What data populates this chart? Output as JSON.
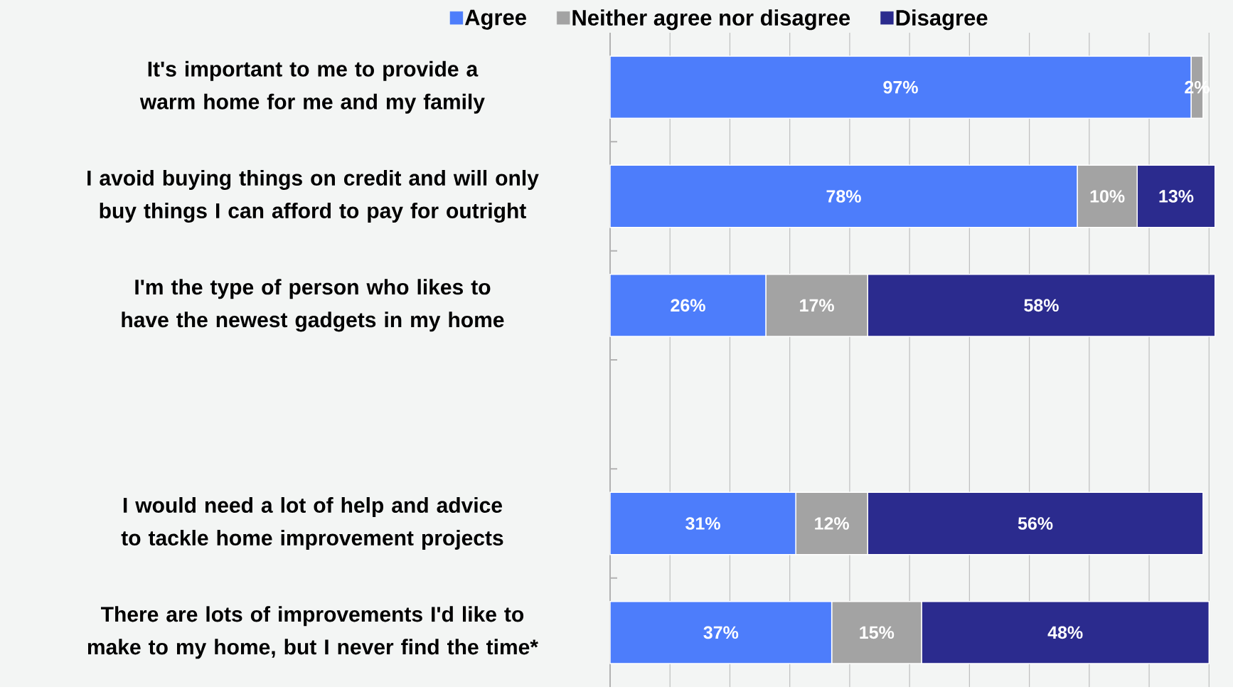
{
  "chart_data": {
    "type": "bar",
    "orientation": "horizontal",
    "stacked": true,
    "categories": [
      "It's important to me to provide a warm home for me and my family",
      "I avoid buying things on credit and will only buy things I can afford to pay for outright",
      "I'm the type of person who likes to have the newest gadgets in my home",
      null,
      "I would need a lot of help and advice to tackle home improvement projects",
      "There are lots of improvements I'd like to make to my home, but I never find the time*"
    ],
    "series": [
      {
        "name": "Agree",
        "color": "#4d7dfb",
        "values": [
          97,
          78,
          26,
          null,
          31,
          37
        ],
        "value_labels": [
          "97%",
          "78%",
          "26%",
          null,
          "31%",
          "37%"
        ]
      },
      {
        "name": "Neither agree nor disagree",
        "color": "#a3a3a3",
        "values": [
          2,
          10,
          17,
          null,
          12,
          15
        ],
        "value_labels": [
          "2%",
          "10%",
          "17%",
          null,
          "12%",
          "15%"
        ]
      },
      {
        "name": "Disagree",
        "color": "#2b2b8e",
        "values": [
          null,
          13,
          58,
          null,
          56,
          48
        ],
        "value_labels": [
          null,
          "13%",
          "58%",
          null,
          "56%",
          "48%"
        ]
      }
    ],
    "xlim": [
      0,
      104
    ],
    "xticks": [
      {
        "value": 10,
        "label": null
      },
      {
        "value": 20,
        "label": null
      },
      {
        "value": 30,
        "label": null
      },
      {
        "value": 40,
        "label": null
      },
      {
        "value": 50,
        "label": null
      },
      {
        "value": 60,
        "label": null
      },
      {
        "value": 70,
        "label": null
      },
      {
        "value": 80,
        "label": null
      },
      {
        "value": 90,
        "label": null
      },
      {
        "value": 100,
        "label": null
      }
    ],
    "grid": "x",
    "legend": "top",
    "tick_labels": "y"
  }
}
